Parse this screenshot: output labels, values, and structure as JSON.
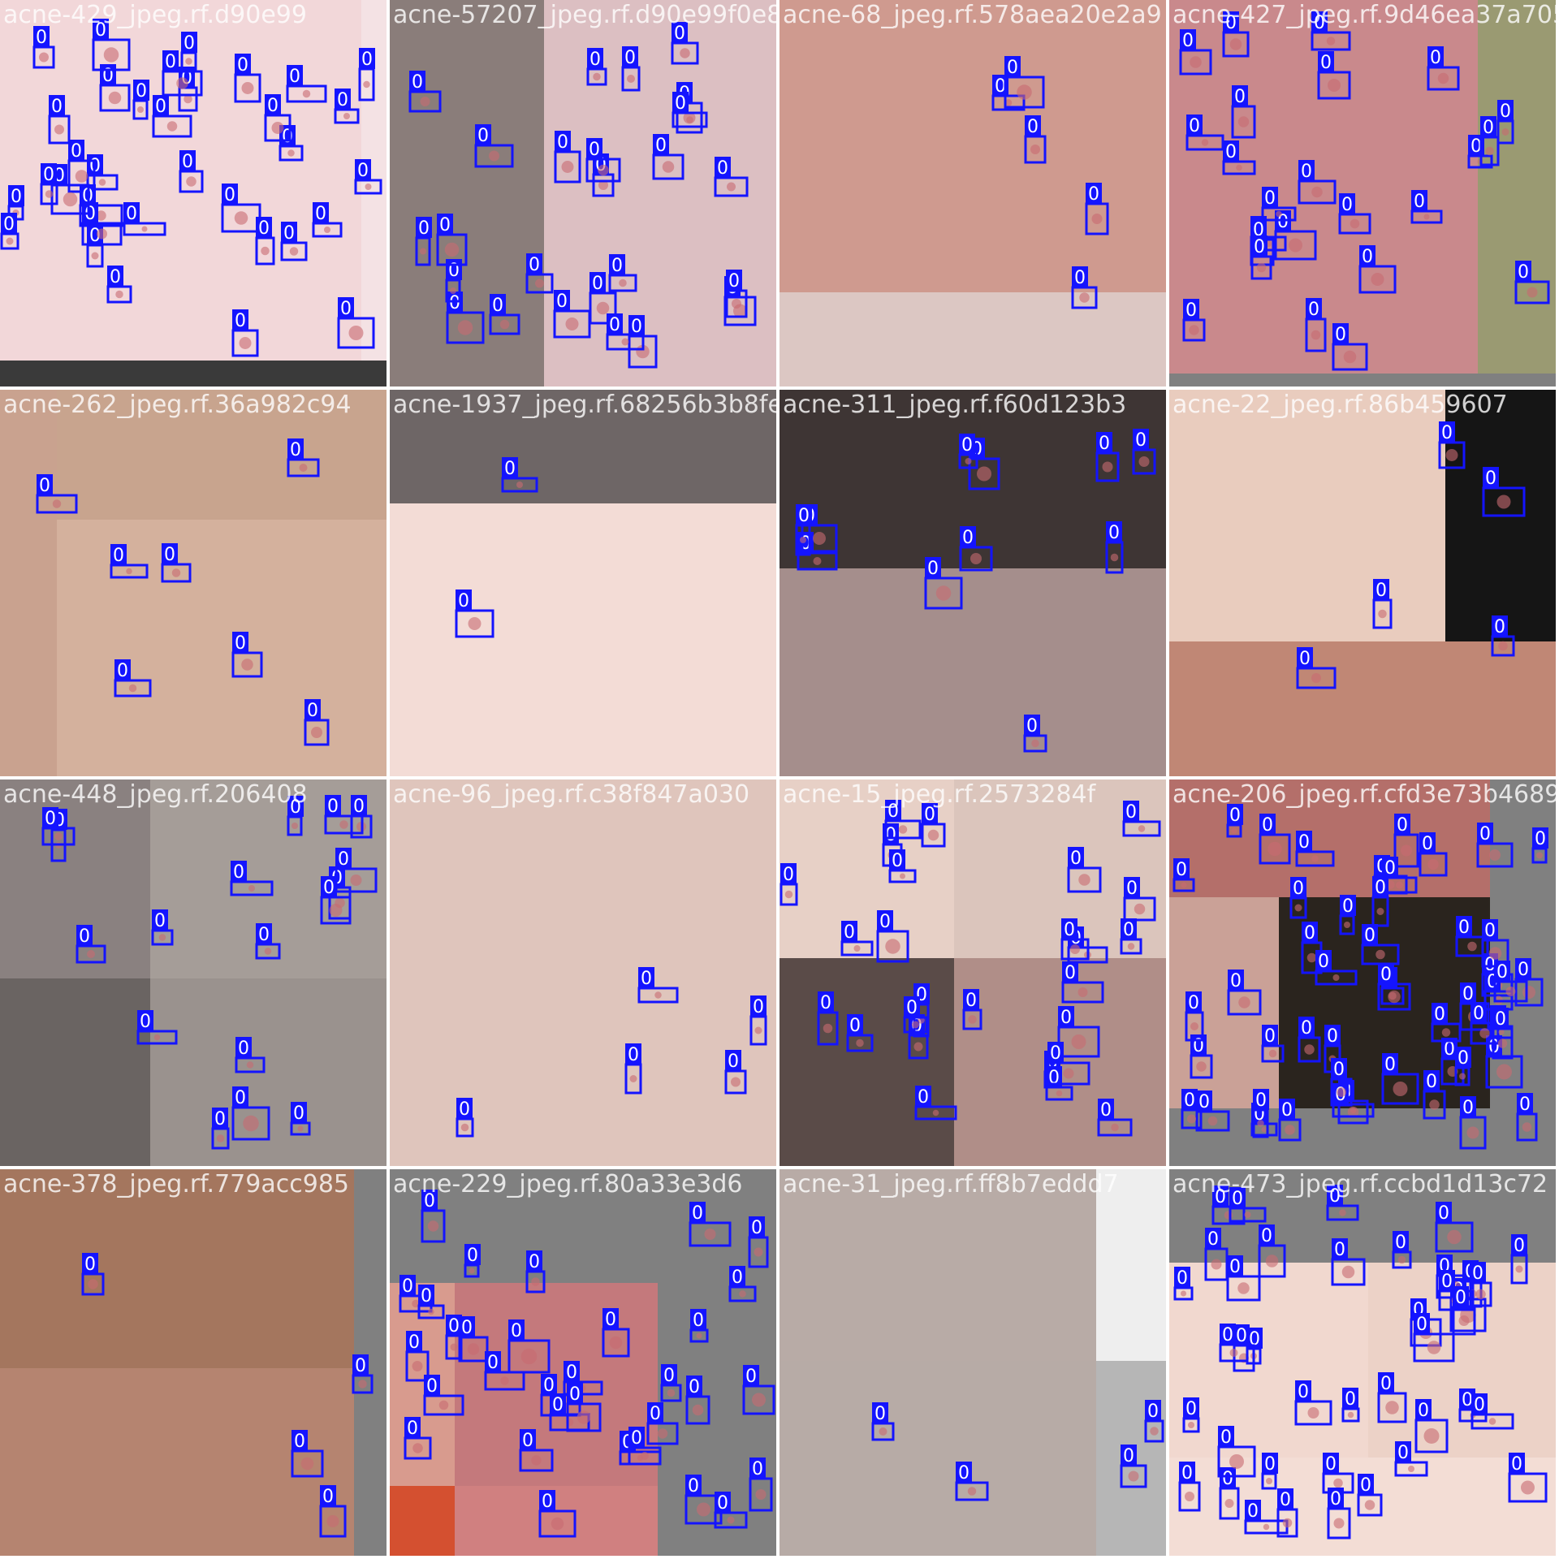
{
  "colors": {
    "box": "#1414ff",
    "label_text": "#ffffff",
    "background": "#808080",
    "skin_light": "#f2d7d9",
    "skin_mid": "#d9b3a8",
    "skin_dark": "#8f7b78",
    "blemish": "#c86a72"
  },
  "box_class_label": "0",
  "tiles": [
    {
      "filename": "acne-429_jpeg.rf.d90e99"
    },
    {
      "filename": "acne-57207_jpeg.rf.d90e99f0e8b67d21ecb7efdfc421bc3c"
    },
    {
      "filename": "acne-68_jpeg.rf.578aea20e2a9"
    },
    {
      "filename": "acne-427_jpeg.rf.9d46ea37a7056f9d3d5ce301c"
    },
    {
      "filename": "acne-262_jpeg.rf.36a982c94"
    },
    {
      "filename": "acne-1937_jpeg.rf.68256b3b8fe"
    },
    {
      "filename": "acne-311_jpeg.rf.f60d123b3"
    },
    {
      "filename": "acne-22_jpeg.rf.86b459607"
    },
    {
      "filename": "acne-448_jpeg.rf.206408"
    },
    {
      "filename": "acne-96_jpeg.rf.c38f847a030"
    },
    {
      "filename": "acne-15_jpeg.rf.2573284f"
    },
    {
      "filename": "acne-206_jpeg.rf.cfd3e73b4689"
    },
    {
      "filename": "acne-378_jpeg.rf.779acc985"
    },
    {
      "filename": "acne-229_jpeg.rf.80a33e3d6"
    },
    {
      "filename": "acne-31_jpeg.rf.ff8b7eddd7"
    },
    {
      "filename": "acne-473_jpeg.rf.ccbd1d13c72"
    }
  ]
}
